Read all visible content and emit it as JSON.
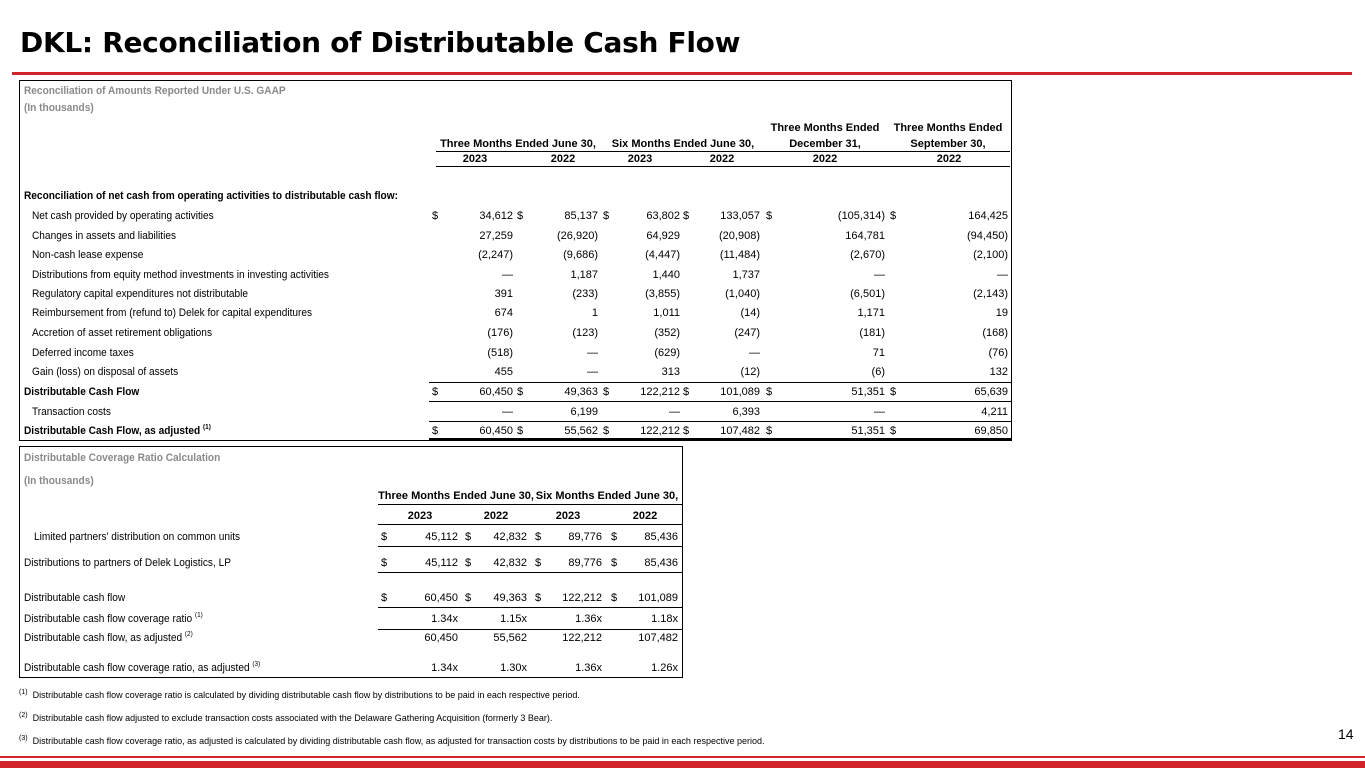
{
  "title": "DKL: Reconciliation of Distributable Cash Flow",
  "page_number": "14",
  "table1": {
    "header_line1": "Reconciliation of  Amounts Reported Under U.S. GAAP",
    "header_line2": "(In thousands)",
    "col_groups": {
      "three_months": "Three Months Ended June 30,",
      "six_months": "Six Months Ended June 30,",
      "dec_line1": "Three Months Ended",
      "dec_line2": "December 31,",
      "sep_line1": "Three Months Ended",
      "sep_line2": "September 30,"
    },
    "years": [
      "2023",
      "2022",
      "2023",
      "2022",
      "2022",
      "2022"
    ],
    "section_title": "Reconciliation of net cash from operating activities to distributable cash flow:",
    "rows": [
      {
        "label": "Net cash provided by operating activities",
        "bold": false,
        "dollar": true,
        "values": [
          "34,612",
          "85,137",
          "63,802",
          "133,057",
          "(105,314)",
          "164,425"
        ]
      },
      {
        "label": "Changes in assets and liabilities",
        "bold": false,
        "dollar": false,
        "values": [
          "27,259",
          "(26,920)",
          "64,929",
          "(20,908)",
          "164,781",
          "(94,450)"
        ]
      },
      {
        "label": "Non-cash lease expense",
        "bold": false,
        "dollar": false,
        "values": [
          "(2,247)",
          "(9,686)",
          "(4,447)",
          "(11,484)",
          "(2,670)",
          "(2,100)"
        ]
      },
      {
        "label": "Distributions from equity method investments in investing activities",
        "bold": false,
        "dollar": false,
        "values": [
          "—",
          "1,187",
          "1,440",
          "1,737",
          "—",
          "—"
        ]
      },
      {
        "label": "Regulatory capital expenditures not distributable",
        "bold": false,
        "dollar": false,
        "values": [
          "391",
          "(233)",
          "(3,855)",
          "(1,040)",
          "(6,501)",
          "(2,143)"
        ]
      },
      {
        "label": "Reimbursement from (refund to) Delek for capital expenditures",
        "bold": false,
        "dollar": false,
        "values": [
          "674",
          "1",
          "1,011",
          "(14)",
          "1,171",
          "19"
        ]
      },
      {
        "label": "Accretion of asset retirement obligations",
        "bold": false,
        "dollar": false,
        "values": [
          "(176)",
          "(123)",
          "(352)",
          "(247)",
          "(181)",
          "(168)"
        ]
      },
      {
        "label": "Deferred income taxes",
        "bold": false,
        "dollar": false,
        "values": [
          "(518)",
          "—",
          "(629)",
          "—",
          "71",
          "(76)"
        ]
      },
      {
        "label": "Gain (loss) on disposal of assets",
        "bold": false,
        "dollar": false,
        "values": [
          "455",
          "—",
          "313",
          "(12)",
          "(6)",
          "132"
        ]
      },
      {
        "label": "Distributable Cash Flow",
        "bold": true,
        "dollar": true,
        "values": [
          "60,450",
          "49,363",
          "122,212",
          "101,089",
          "51,351",
          "65,639"
        ]
      },
      {
        "label": "Transaction costs",
        "bold": false,
        "dollar": false,
        "values": [
          "—",
          "6,199",
          "—",
          "6,393",
          "—",
          "4,211"
        ]
      },
      {
        "label": "Distributable Cash Flow, as adjusted",
        "sup": "(1)",
        "bold": true,
        "dollar": true,
        "values": [
          "60,450",
          "55,562",
          "122,212",
          "107,482",
          "51,351",
          "69,850"
        ]
      }
    ]
  },
  "table2": {
    "header_line1": "Distributable Coverage Ratio Calculation",
    "header_line2": "(In thousands)",
    "col_groups": {
      "three_months": "Three Months Ended June 30,",
      "six_months": "Six Months Ended June 30,"
    },
    "years": [
      "2023",
      "2022",
      "2023",
      "2022"
    ],
    "rows": [
      {
        "label": "Limited partners' distribution on common units",
        "indent": true,
        "dollar": true,
        "values": [
          "45,112",
          "42,832",
          "89,776",
          "85,436"
        ]
      },
      {
        "label": "Distributions to partners of Delek Logistics, LP",
        "dollar": true,
        "values": [
          "45,112",
          "42,832",
          "89,776",
          "85,436"
        ]
      },
      {
        "label": "Distributable cash flow",
        "dollar": true,
        "values": [
          "60,450",
          "49,363",
          "122,212",
          "101,089"
        ]
      },
      {
        "label": "Distributable cash flow coverage ratio",
        "sup": "(1)",
        "dollar": false,
        "values": [
          "1.34x",
          "1.15x",
          "1.36x",
          "1.18x"
        ]
      },
      {
        "label": "Distributable cash flow, as adjusted",
        "sup": "(2)",
        "dollar": false,
        "values": [
          "60,450",
          "55,562",
          "122,212",
          "107,482"
        ]
      },
      {
        "label": "Distributable cash flow coverage ratio, as adjusted",
        "sup": "(3)",
        "dollar": false,
        "values": [
          "1.34x",
          "1.30x",
          "1.36x",
          "1.26x"
        ]
      }
    ]
  },
  "currency_symbol": "$",
  "footnotes": [
    {
      "mark": "(1)",
      "text": "Distributable cash flow coverage ratio is calculated by dividing distributable cash flow by distributions to be paid in each respective period."
    },
    {
      "mark": "(2)",
      "text": "Distributable cash flow adjusted to exclude transaction costs associated with the Delaware Gathering Acquisition (formerly 3 Bear)."
    },
    {
      "mark": "(3)",
      "text": "Distributable cash flow coverage ratio, as adjusted is calculated by dividing distributable cash flow, as adjusted for transaction costs by distributions to be paid in each respective period."
    }
  ]
}
